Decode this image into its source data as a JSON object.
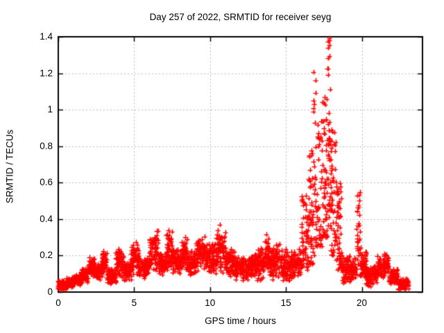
{
  "window": {
    "background": "#ffffff",
    "foreground": "#000000"
  },
  "chart_data": {
    "type": "scatter",
    "title": "Day 257 of 2022, SRMTID for receiver seyg",
    "xlabel": "GPS time / hours",
    "ylabel": "SRMTID / TECUs",
    "xlim": [
      0,
      24
    ],
    "ylim": [
      0,
      1.4
    ],
    "xtick_values": [
      0,
      5,
      10,
      15,
      20
    ],
    "xtick_labels": [
      "0",
      "5",
      "10",
      "15",
      "20"
    ],
    "ytick_values": [
      0,
      0.2,
      0.4,
      0.6,
      0.8,
      1,
      1.2,
      1.4
    ],
    "ytick_labels": [
      "0",
      "0.2",
      "0.4",
      "0.6",
      "0.8",
      "1",
      "1.2",
      "1.4"
    ],
    "grid": {
      "visible": true,
      "style": "dashed",
      "color": "#b8b8b8"
    },
    "marker": {
      "shape": "plus",
      "color": "#ff0000"
    },
    "border_color": "#000000",
    "legend": "none",
    "x_data_range": [
      0.0,
      23.1
    ],
    "peak": {
      "x": 17.85,
      "y": 1.39
    },
    "bins_format": [
      "x_start_hours",
      "x_end_hours",
      "y_min_TECUs",
      "y_max_TECUs",
      "point_count",
      "optional_low_bias_power"
    ],
    "scatter_bins": [
      [
        0.0,
        0.5,
        0.01,
        0.07,
        70
      ],
      [
        0.5,
        1.0,
        0.02,
        0.08,
        70
      ],
      [
        1.0,
        1.5,
        0.03,
        0.1,
        70
      ],
      [
        1.5,
        2.0,
        0.05,
        0.14,
        70
      ],
      [
        2.0,
        2.4,
        0.08,
        0.2,
        55
      ],
      [
        2.4,
        2.9,
        0.06,
        0.16,
        65
      ],
      [
        2.9,
        3.2,
        0.08,
        0.25,
        45
      ],
      [
        3.2,
        3.8,
        0.04,
        0.13,
        75
      ],
      [
        3.8,
        4.3,
        0.07,
        0.25,
        65
      ],
      [
        4.3,
        4.8,
        0.06,
        0.17,
        65
      ],
      [
        4.8,
        5.3,
        0.09,
        0.28,
        65
      ],
      [
        5.3,
        6.0,
        0.07,
        0.2,
        90
      ],
      [
        6.0,
        6.6,
        0.1,
        0.35,
        75
      ],
      [
        6.6,
        7.1,
        0.09,
        0.22,
        65
      ],
      [
        7.1,
        7.5,
        0.1,
        0.36,
        50
      ],
      [
        7.5,
        8.1,
        0.09,
        0.24,
        75
      ],
      [
        8.1,
        8.5,
        0.1,
        0.31,
        50
      ],
      [
        8.5,
        9.1,
        0.09,
        0.24,
        75
      ],
      [
        9.1,
        9.7,
        0.11,
        0.31,
        75
      ],
      [
        9.7,
        10.4,
        0.09,
        0.28,
        85
      ],
      [
        10.4,
        11.0,
        0.1,
        0.39,
        75
      ],
      [
        11.0,
        11.6,
        0.07,
        0.26,
        75
      ],
      [
        11.6,
        12.6,
        0.05,
        0.2,
        120
      ],
      [
        12.6,
        13.1,
        0.07,
        0.22,
        65
      ],
      [
        13.1,
        13.6,
        0.05,
        0.26,
        65
      ],
      [
        13.6,
        13.9,
        0.1,
        0.32,
        40
      ],
      [
        13.9,
        14.6,
        0.06,
        0.28,
        85
      ],
      [
        14.6,
        15.4,
        0.04,
        0.24,
        95
      ],
      [
        15.4,
        16.0,
        0.07,
        0.25,
        65
      ],
      [
        16.0,
        16.5,
        0.12,
        0.55,
        55,
        1.4
      ],
      [
        16.5,
        16.9,
        0.15,
        0.8,
        50,
        1.5
      ],
      [
        16.8,
        17.0,
        0.9,
        1.22,
        8,
        1.0
      ],
      [
        16.9,
        17.4,
        0.25,
        0.95,
        55,
        1.6
      ],
      [
        17.4,
        17.75,
        0.3,
        1.1,
        45,
        1.5
      ],
      [
        17.75,
        17.95,
        0.35,
        1.4,
        40,
        1.3
      ],
      [
        17.95,
        18.3,
        0.2,
        0.95,
        50,
        1.5
      ],
      [
        18.3,
        18.65,
        0.12,
        0.6,
        55,
        1.6
      ],
      [
        18.65,
        19.3,
        0.04,
        0.22,
        75
      ],
      [
        19.3,
        19.65,
        0.05,
        0.2,
        45
      ],
      [
        19.65,
        19.9,
        0.15,
        0.55,
        30,
        1.3
      ],
      [
        19.9,
        20.3,
        0.05,
        0.25,
        55
      ],
      [
        20.3,
        21.0,
        0.03,
        0.15,
        85
      ],
      [
        21.0,
        21.8,
        0.07,
        0.22,
        95
      ],
      [
        21.8,
        22.4,
        0.04,
        0.13,
        75
      ],
      [
        22.4,
        23.1,
        0.01,
        0.08,
        80
      ]
    ]
  }
}
